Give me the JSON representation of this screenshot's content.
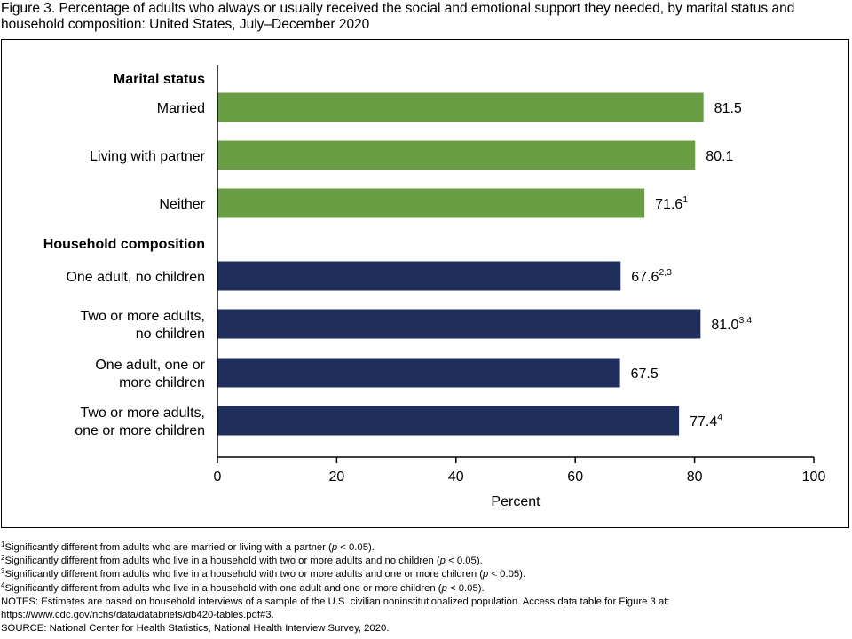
{
  "title": "Figure 3. Percentage of adults who always or usually received the social and emotional support they needed, by marital status and household composition: United States, July–December 2020",
  "chart_data": {
    "type": "bar",
    "orientation": "horizontal",
    "title": "Figure 3. Percentage of adults who always or usually received the social and emotional support they needed, by marital status and household composition: United States, July–December 2020",
    "xlabel": "Percent",
    "ylabel": "",
    "xlim": [
      0,
      100
    ],
    "xticks": [
      0,
      20,
      40,
      60,
      80,
      100
    ],
    "grid": false,
    "groups": [
      {
        "name": "Marital status",
        "color": "#6a9e45",
        "bars": [
          {
            "label": [
              "Married"
            ],
            "value": 81.5,
            "display": "81.5",
            "sup": ""
          },
          {
            "label": [
              "Living with partner"
            ],
            "value": 80.1,
            "display": "80.1",
            "sup": ""
          },
          {
            "label": [
              "Neither"
            ],
            "value": 71.6,
            "display": "71.6",
            "sup": "1"
          }
        ]
      },
      {
        "name": "Household composition",
        "color": "#1f2e5a",
        "bars": [
          {
            "label": [
              "One adult, no children"
            ],
            "value": 67.6,
            "display": "67.6",
            "sup": "2,3"
          },
          {
            "label": [
              "Two or more adults,",
              "no children"
            ],
            "value": 81.0,
            "display": "81.0",
            "sup": "3,4"
          },
          {
            "label": [
              "One adult, one or",
              "more children"
            ],
            "value": 67.5,
            "display": "67.5",
            "sup": ""
          },
          {
            "label": [
              "Two or more adults,",
              "one or more children"
            ],
            "value": 77.4,
            "display": "77.4",
            "sup": "4"
          }
        ]
      }
    ]
  },
  "footnotes": [
    {
      "sup": "1",
      "text": "Significantly different from adults who are married or living with a partner (",
      "p": "p",
      "tail": " < 0.05)."
    },
    {
      "sup": "2",
      "text": "Significantly different from adults who live in a household with two or more adults and no children (",
      "p": "p",
      "tail": " < 0.05)."
    },
    {
      "sup": "3",
      "text": "Significantly different from adults who live in a household with two or more adults and one or more children (",
      "p": "p",
      "tail": " < 0.05)."
    },
    {
      "sup": "4",
      "text": "Significantly different from adults who live in a household with one adult and one or more children (",
      "p": "p",
      "tail": " < 0.05)."
    }
  ],
  "notes_text": "NOTES: Estimates are based on household interviews of a sample of the U.S. civilian noninstitutionalized population. Access data table for Figure 3 at:",
  "notes_url": "https://www.cdc.gov/nchs/data/databriefs/db420-tables.pdf#3.",
  "source_text": "SOURCE: National Center for Health Statistics, National Health Interview Survey, 2020."
}
